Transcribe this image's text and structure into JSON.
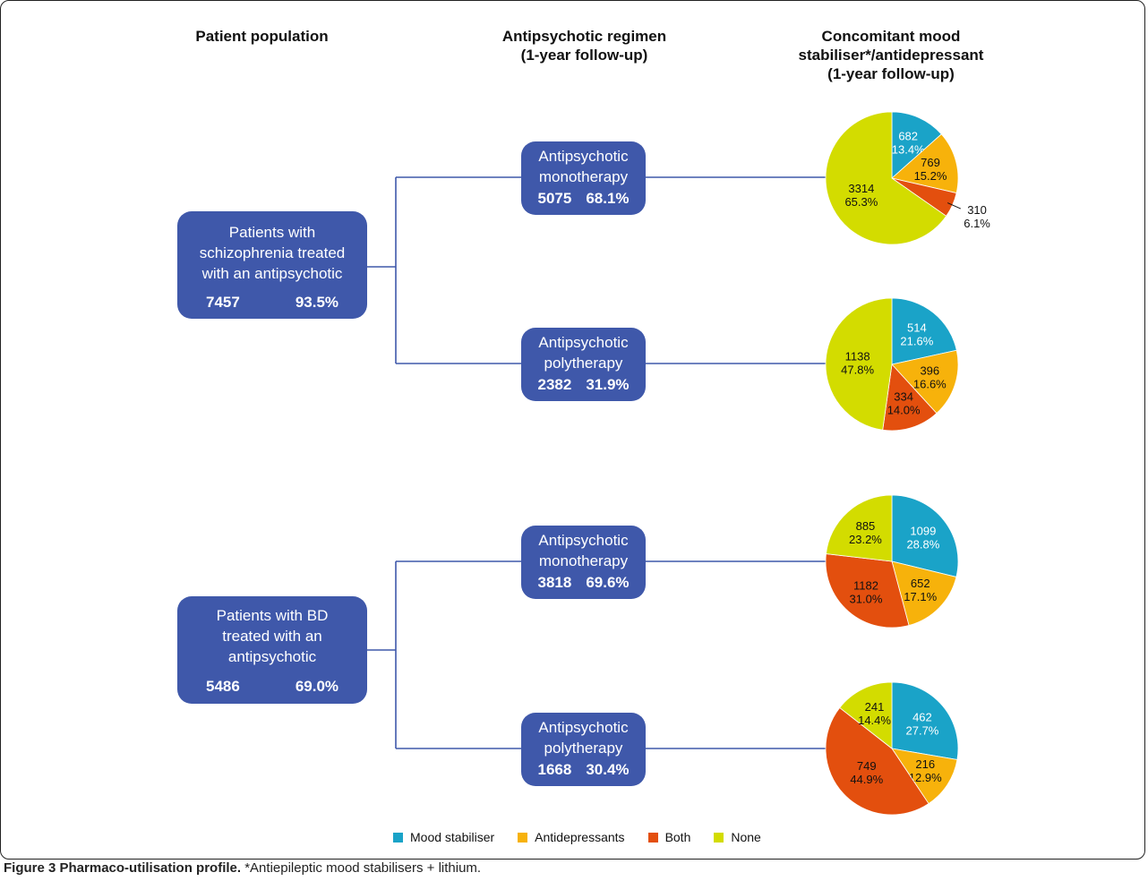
{
  "headers": {
    "population": "Patient population",
    "regimen": "Antipsychotic regimen\n(1-year follow-up)",
    "concomitant": "Concomitant mood\nstabiliser*/antidepressant\n(1-year follow-up)"
  },
  "groups": [
    {
      "label": "Patients with\nschizophrenia treated\nwith an antipsychotic",
      "n": "7457",
      "pct": "93.5%",
      "regimens": [
        {
          "label": "Antipsychotic\nmonotherapy",
          "n": "5075",
          "pct": "68.1%"
        },
        {
          "label": "Antipsychotic\npolytherapy",
          "n": "2382",
          "pct": "31.9%"
        }
      ]
    },
    {
      "label": "Patients with BD\ntreated with an\nantipsychotic",
      "n": "5486",
      "pct": "69.0%",
      "regimens": [
        {
          "label": "Antipsychotic\nmonotherapy",
          "n": "3818",
          "pct": "69.6%"
        },
        {
          "label": "Antipsychotic\npolytherapy",
          "n": "1668",
          "pct": "30.4%"
        }
      ]
    }
  ],
  "colors": {
    "Mood stabiliser": "#1aa3c8",
    "Antidepressants": "#f7b20b",
    "Both": "#e34f0e",
    "None": "#d3dc00",
    "box": "#3f58aa",
    "line": "#3f58aa"
  },
  "chart_data": [
    {
      "type": "pie",
      "categories": [
        "Mood stabiliser",
        "Antidepressants",
        "Both",
        "None"
      ],
      "values": [
        682,
        769,
        310,
        3314
      ],
      "labels": [
        "13.4%",
        "15.2%",
        "6.1%",
        "65.3%"
      ]
    },
    {
      "type": "pie",
      "categories": [
        "Mood stabiliser",
        "Antidepressants",
        "Both",
        "None"
      ],
      "values": [
        514,
        396,
        334,
        1138
      ],
      "labels": [
        "21.6%",
        "16.6%",
        "14.0%",
        "47.8%"
      ]
    },
    {
      "type": "pie",
      "categories": [
        "Mood stabiliser",
        "Antidepressants",
        "Both",
        "None"
      ],
      "values": [
        1099,
        652,
        1182,
        885
      ],
      "labels": [
        "28.8%",
        "17.1%",
        "31.0%",
        "23.2%"
      ]
    },
    {
      "type": "pie",
      "categories": [
        "Mood stabiliser",
        "Antidepressants",
        "Both",
        "None"
      ],
      "values": [
        462,
        216,
        749,
        241
      ],
      "labels": [
        "27.7%",
        "12.9%",
        "44.9%",
        "14.4%"
      ]
    }
  ],
  "legend": [
    "Mood stabiliser",
    "Antidepressants",
    "Both",
    "None"
  ],
  "caption": {
    "bold": "Figure 3 Pharmaco-utilisation profile.",
    "rest": " *Antiepileptic mood stabilisers + lithium."
  }
}
